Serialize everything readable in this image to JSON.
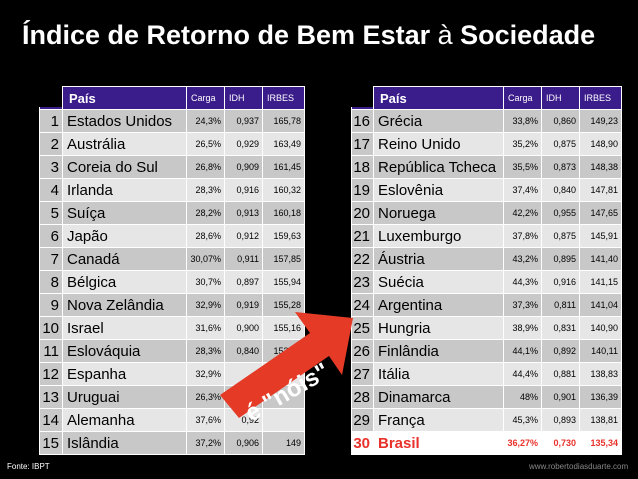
{
  "title_main": "Índice de Retorno de Bem Estar ",
  "title_a": "à",
  "title_end": " Sociedade",
  "chart_data": {
    "type": "table",
    "columns": [
      "País",
      "Carga",
      "IDH",
      "IRBES"
    ],
    "rows": [
      {
        "rank": "1",
        "pais": "Estados Unidos",
        "carga": "24,3%",
        "idh": "0,937",
        "irbes": "165,78"
      },
      {
        "rank": "2",
        "pais": "Austrália",
        "carga": "26,5%",
        "idh": "0,929",
        "irbes": "163,49"
      },
      {
        "rank": "3",
        "pais": "Coreia do Sul",
        "carga": "26,8%",
        "idh": "0,909",
        "irbes": "161,45"
      },
      {
        "rank": "4",
        "pais": "Irlanda",
        "carga": "28,3%",
        "idh": "0,916",
        "irbes": "160,32"
      },
      {
        "rank": "5",
        "pais": "Suíça",
        "carga": "28,2%",
        "idh": "0,913",
        "irbes": "160,18"
      },
      {
        "rank": "6",
        "pais": "Japão",
        "carga": "28,6%",
        "idh": "0,912",
        "irbes": "159,63"
      },
      {
        "rank": "7",
        "pais": "Canadá",
        "carga": "30,07%",
        "idh": "0,911",
        "irbes": "157,85"
      },
      {
        "rank": "8",
        "pais": "Bélgica",
        "carga": "30,7%",
        "idh": "0,897",
        "irbes": "155,94"
      },
      {
        "rank": "9",
        "pais": "Nova Zelândia",
        "carga": "32,9%",
        "idh": "0,919",
        "irbes": "155,28"
      },
      {
        "rank": "10",
        "pais": "Israel",
        "carga": "31,6%",
        "idh": "0,900",
        "irbes": "155,16"
      },
      {
        "rank": "11",
        "pais": "Eslováquia",
        "carga": "28,3%",
        "idh": "0,840",
        "irbes": "153,86"
      },
      {
        "rank": "12",
        "pais": "Espanha",
        "carga": "32,9%",
        "idh": "",
        "irbes": "152,39"
      },
      {
        "rank": "13",
        "pais": "Uruguai",
        "carga": "26,3%",
        "idh": "",
        "irbes": ""
      },
      {
        "rank": "14",
        "pais": "Alemanha",
        "carga": "37,6%",
        "idh": "0,92",
        "irbes": ""
      },
      {
        "rank": "15",
        "pais": "Islândia",
        "carga": "37,2%",
        "idh": "0,906",
        "irbes": "149"
      },
      {
        "rank": "16",
        "pais": "Grécia",
        "carga": "33,8%",
        "idh": "0,860",
        "irbes": "149,23"
      },
      {
        "rank": "17",
        "pais": "Reino Unido",
        "carga": "35,2%",
        "idh": "0,875",
        "irbes": "148,90"
      },
      {
        "rank": "18",
        "pais": "República Tcheca",
        "carga": "35,5%",
        "idh": "0,873",
        "irbes": "148,38"
      },
      {
        "rank": "19",
        "pais": "Eslovênia",
        "carga": "37,4%",
        "idh": "0,840",
        "irbes": "147,81"
      },
      {
        "rank": "20",
        "pais": "Noruega",
        "carga": "42,2%",
        "idh": "0,955",
        "irbes": "147,65"
      },
      {
        "rank": "21",
        "pais": "Luxemburgo",
        "carga": "37,8%",
        "idh": "0,875",
        "irbes": "145,91"
      },
      {
        "rank": "22",
        "pais": "Áustria",
        "carga": "43,2%",
        "idh": "0,895",
        "irbes": "141,40"
      },
      {
        "rank": "23",
        "pais": "Suécia",
        "carga": "44,3%",
        "idh": "0,916",
        "irbes": "141,15"
      },
      {
        "rank": "24",
        "pais": "Argentina",
        "carga": "37,3%",
        "idh": "0,811",
        "irbes": "141,04"
      },
      {
        "rank": "25",
        "pais": "Hungria",
        "carga": "38,9%",
        "idh": "0,831",
        "irbes": "140,90"
      },
      {
        "rank": "26",
        "pais": "Finlândia",
        "carga": "44,1%",
        "idh": "0,892",
        "irbes": "140,11"
      },
      {
        "rank": "27",
        "pais": "Itália",
        "carga": "44,4%",
        "idh": "0,881",
        "irbes": "138,83"
      },
      {
        "rank": "28",
        "pais": "Dinamarca",
        "carga": "48%",
        "idh": "0,901",
        "irbes": "136,39"
      },
      {
        "rank": "29",
        "pais": "França",
        "carga": "45,3%",
        "idh": "0,893",
        "irbes": "138,81"
      },
      {
        "rank": "30",
        "pais": "Brasil",
        "carga": "36,27%",
        "idh": "0,730",
        "irbes": "135,34"
      }
    ]
  },
  "highlight_rank": "30",
  "colors": {
    "header": "#3a1c8a",
    "highlight": "#e8312a",
    "arrow": "#e43a26"
  },
  "callout": "é \"nóis\"",
  "source": "Fonte: IBPT",
  "website": "www.robertodiasduarte.com"
}
